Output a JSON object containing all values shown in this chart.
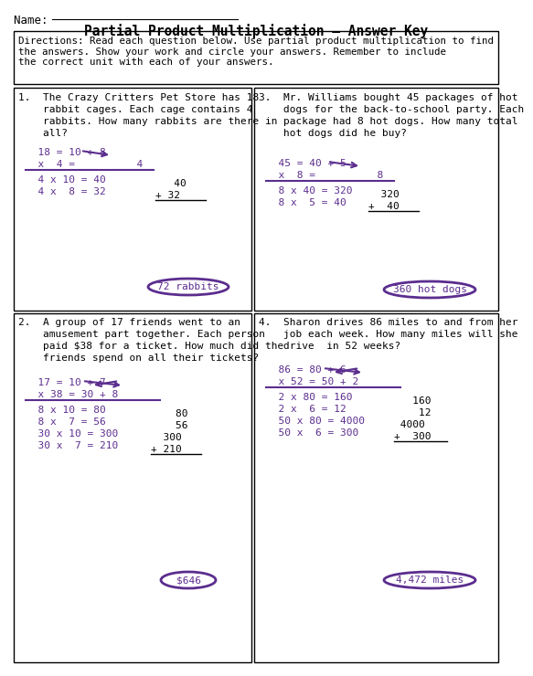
{
  "title": "Partial Product Multiplication – Answer Key",
  "name_label": "Name:  ",
  "directions": "Directions: Read each question below. Use partial product multiplication to find\nthe answers. Show your work and circle your answers. Remember to include\nthe correct unit with each of your answers.",
  "bg_color": "#ffffff",
  "text_color": "#000000",
  "purple": "#5B2D8E",
  "q1_text": [
    "1.  The Crazy Critters Pet Store has 18",
    "    rabbit cages. Each cage contains 4",
    "    rabbits. How many rabbits are there in",
    "    all?"
  ],
  "q1_eq1": "  18 = 10 + 8",
  "q1_eq2": "  x  4 =          4",
  "q1_work1": "  4 x 10 = 40",
  "q1_work2": "  4 x  8 = 32",
  "q1_add1": "   40",
  "q1_add2": "+ 32",
  "q1_ans": "72 rabbits",
  "q2_text": [
    "2.  A group of 17 friends went to an",
    "    amusement part together. Each person",
    "    paid $38 for a ticket. How much did the",
    "    friends spend on all their tickets?"
  ],
  "q2_eq1": "  17 = 10 + 7",
  "q2_eq2": "  x 38 = 30 + 8",
  "q2_work1": "  8 x 10 = 80",
  "q2_work2": "  8 x  7 = 56",
  "q2_work3": "  30 x 10 = 300",
  "q2_work4": "  30 x  7 = 210",
  "q2_add1": "    80",
  "q2_add2": "    56",
  "q2_add3": "  300",
  "q2_add4": "+ 210",
  "q2_ans": "$646",
  "q3_text": [
    "3.  Mr. Williams bought 45 packages of hot",
    "    dogs for the back-to-school party. Each",
    "    package had 8 hot dogs. How many total",
    "    hot dogs did he buy?"
  ],
  "q3_eq1": "  45 = 40 + 5",
  "q3_eq2": "  x  8 =          8",
  "q3_work1": "  8 x 40 = 320",
  "q3_work2": "  8 x  5 = 40",
  "q3_add1": "  320",
  "q3_add2": "+  40",
  "q3_ans": "360 hot dogs",
  "q4_text": [
    "4.  Sharon drives 86 miles to and from her",
    "    job each week. How many miles will she",
    "    drive  in 52 weeks?"
  ],
  "q4_eq1": "  86 = 80 + 6",
  "q4_eq2": "  x 52 = 50 + 2",
  "q4_work1": "  2 x 80 = 160",
  "q4_work2": "  2 x  6 = 12",
  "q4_work3": "  50 x 80 = 4000",
  "q4_work4": "  50 x  6 = 300",
  "q4_add1": "   160",
  "q4_add2": "    12",
  "q4_add3": " 4000",
  "q4_add4": "+  300",
  "q4_ans": "4,472 miles"
}
